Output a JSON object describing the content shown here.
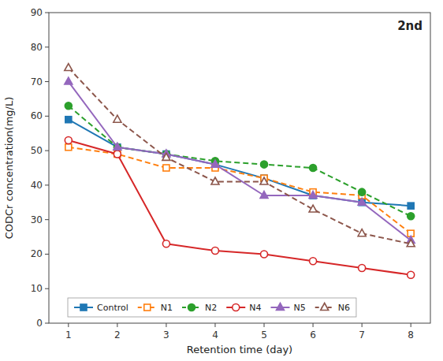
{
  "chart_data": {
    "type": "line",
    "x": [
      1,
      2,
      3,
      4,
      5,
      6,
      7,
      8
    ],
    "series": [
      {
        "name": "Control",
        "values": [
          59,
          51,
          49,
          46,
          42,
          37,
          35,
          34
        ],
        "marker": "square",
        "line_style": "solid"
      },
      {
        "name": "N1",
        "values": [
          51,
          49,
          45,
          45,
          42,
          38,
          37,
          26
        ],
        "marker": "square-open",
        "line_style": "dashed"
      },
      {
        "name": "N2",
        "values": [
          63,
          51,
          49,
          47,
          46,
          45,
          38,
          31
        ],
        "marker": "circle",
        "line_style": "dashed"
      },
      {
        "name": "N4",
        "values": [
          53,
          49,
          23,
          21,
          20,
          18,
          16,
          14
        ],
        "marker": "circle-open",
        "line_style": "solid"
      },
      {
        "name": "N5",
        "values": [
          70,
          51,
          49,
          46,
          37,
          37,
          35,
          24
        ],
        "marker": "triangle",
        "line_style": "solid"
      },
      {
        "name": "N6",
        "values": [
          74,
          59,
          48,
          41,
          41,
          33,
          26,
          23
        ],
        "marker": "triangle-open",
        "line_style": "dashed"
      }
    ],
    "x_label": "Retention time (day)",
    "y_label": "CODCr concentration(mg/L)",
    "annotation": "2nd",
    "xlim": [
      0.6,
      8.4
    ],
    "ylim": [
      0,
      90
    ],
    "xticks": [
      1,
      2,
      3,
      4,
      5,
      6,
      7,
      8
    ],
    "yticks": [
      0,
      10,
      20,
      30,
      40,
      50,
      60,
      70,
      80,
      90
    ],
    "grid": false,
    "legend": "lower left"
  }
}
